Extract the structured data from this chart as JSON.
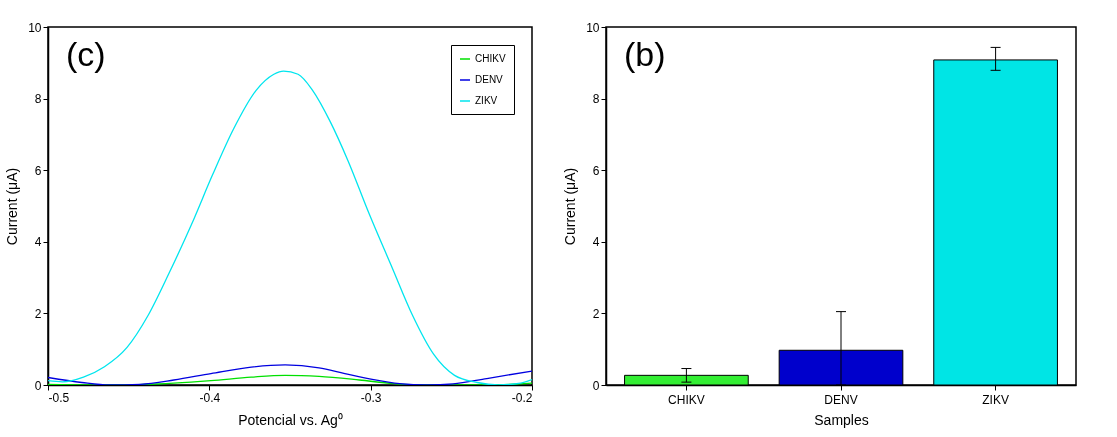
{
  "chart_data": [
    {
      "type": "line",
      "annotations": [
        "(c)"
      ],
      "xlabel": "Potencial vs. Ag⁰",
      "ylabel": "Current (μA)",
      "xlim": [
        -0.5,
        -0.2
      ],
      "ylim": [
        0,
        10
      ],
      "xticks": [
        -0.5,
        -0.4,
        -0.3,
        -0.2
      ],
      "yticks": [
        0,
        2,
        4,
        6,
        8,
        10
      ],
      "legend": "top right",
      "series": [
        {
          "name": "CHIKV",
          "color": "#00e000",
          "x": [
            -0.5,
            -0.454,
            -0.422,
            -0.399,
            -0.374,
            -0.353,
            -0.332,
            -0.307,
            -0.286,
            -0.265,
            -0.228,
            -0.2
          ],
          "values": [
            0.02,
            0.0,
            0.05,
            0.12,
            0.22,
            0.27,
            0.24,
            0.14,
            0.04,
            0.0,
            0.0,
            0.05
          ]
        },
        {
          "name": "DENV",
          "color": "#0000e0",
          "x": [
            -0.5,
            -0.479,
            -0.462,
            -0.443,
            -0.422,
            -0.399,
            -0.374,
            -0.353,
            -0.332,
            -0.316,
            -0.299,
            -0.282,
            -0.265,
            -0.249,
            -0.228,
            -0.2
          ],
          "values": [
            0.21,
            0.07,
            0.0,
            0.02,
            0.14,
            0.32,
            0.5,
            0.56,
            0.48,
            0.32,
            0.16,
            0.04,
            0.0,
            0.03,
            0.18,
            0.39
          ]
        },
        {
          "name": "ZIKV",
          "color": "#00e5ee",
          "x": [
            -0.5,
            -0.491,
            -0.478,
            -0.465,
            -0.451,
            -0.438,
            -0.425,
            -0.411,
            -0.398,
            -0.385,
            -0.371,
            -0.36,
            -0.354,
            -0.345,
            -0.336,
            -0.325,
            -0.314,
            -0.301,
            -0.287,
            -0.274,
            -0.261,
            -0.248,
            -0.234,
            -0.221,
            -0.207,
            -0.2
          ],
          "values": [
            0.12,
            0.09,
            0.22,
            0.51,
            1.05,
            1.94,
            3.12,
            4.49,
            5.87,
            7.15,
            8.23,
            8.68,
            8.77,
            8.68,
            8.23,
            7.35,
            6.26,
            4.79,
            3.31,
            1.94,
            0.86,
            0.27,
            0.07,
            0.0,
            0.05,
            0.15
          ]
        }
      ]
    },
    {
      "type": "bar",
      "annotations": [
        "(b)"
      ],
      "xlabel": "Samples",
      "ylabel": "Current (μA)",
      "ylim": [
        0,
        10
      ],
      "yticks": [
        0,
        2,
        4,
        6,
        8,
        10
      ],
      "categories": [
        "CHIKV",
        "DENV",
        "ZIKV"
      ],
      "values": [
        0.27,
        0.97,
        9.08
      ],
      "colors": [
        "#33ee33",
        "#0000cc",
        "#00e5e5"
      ],
      "errors": [
        [
          0.08,
          0.46
        ],
        [
          0,
          2.05
        ],
        [
          8.79,
          9.43
        ]
      ]
    }
  ]
}
